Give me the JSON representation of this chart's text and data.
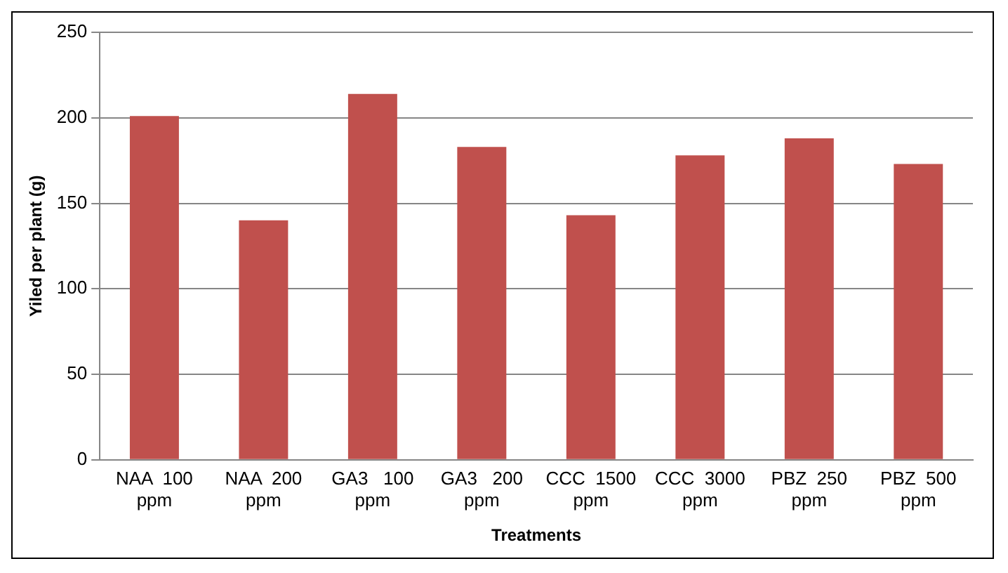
{
  "chart_data": {
    "type": "bar",
    "xlabel": "Treatments",
    "ylabel": "Yiled per plant (g)",
    "categories": [
      "NAA  100 ppm",
      "NAA  200 ppm",
      "GA3   100 ppm",
      "GA3   200 ppm",
      "CCC  1500 ppm",
      "CCC  3000 ppm",
      "PBZ  250 ppm",
      "PBZ  500 ppm"
    ],
    "values": [
      201,
      140,
      214,
      183,
      143,
      178,
      188,
      173
    ],
    "color": "#c0504d",
    "ylim": [
      0,
      250
    ],
    "yticks": [
      0,
      50,
      100,
      150,
      200,
      250
    ],
    "grid": "y",
    "legend": false
  }
}
